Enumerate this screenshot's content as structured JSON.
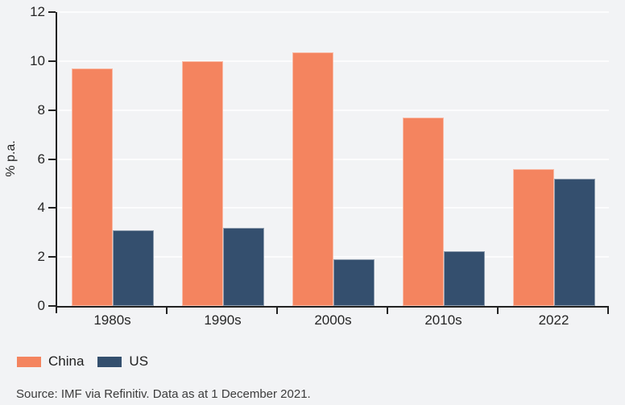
{
  "chart_data": {
    "type": "bar",
    "title": "",
    "ylabel": "% p.a.",
    "categories": [
      "1980s",
      "1990s",
      "2000s",
      "2010s",
      "2022"
    ],
    "series": [
      {
        "name": "China",
        "color": "#F4845F",
        "values": [
          9.7,
          10.0,
          10.35,
          7.7,
          5.6
        ]
      },
      {
        "name": "US",
        "color": "#344F6E",
        "values": [
          3.1,
          3.2,
          1.9,
          2.25,
          5.2
        ]
      }
    ],
    "ylim": [
      0,
      12
    ],
    "yticks": [
      0,
      2,
      4,
      6,
      8,
      10,
      12
    ],
    "grid": "horizontal",
    "legend_position": "bottom-left"
  },
  "colors": {
    "background": "#F2F3F5",
    "gridline": "#FCFCFD",
    "axis": "#222222",
    "china": "#F4845F",
    "us": "#344F6E"
  },
  "source_note": "Source: IMF via Refinitiv. Data as at 1 December 2021."
}
